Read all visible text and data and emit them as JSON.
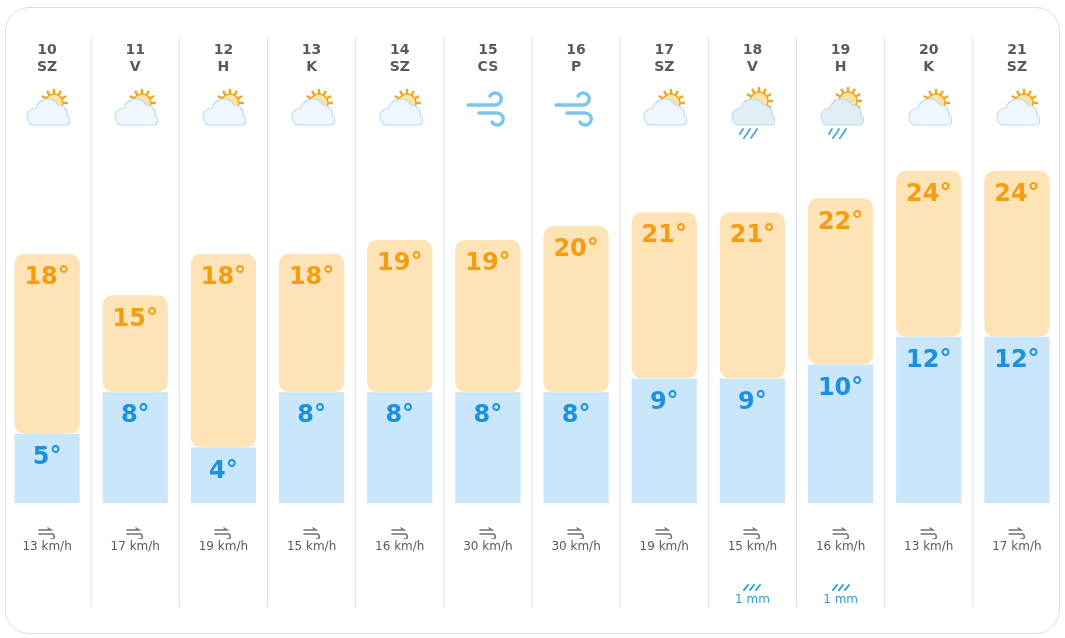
{
  "chart_data": {
    "type": "bar",
    "categories": [
      "10\nSZ",
      "11\nV",
      "12\nH",
      "13\nK",
      "14\nSZ",
      "15\nCS",
      "16\nP",
      "17\nSZ",
      "18\nV",
      "19\nH",
      "20\nK",
      "21\nSZ"
    ],
    "series": [
      {
        "color": "#c9e6fb",
        "values": [
          5,
          8,
          4,
          8,
          8,
          8,
          8,
          9,
          9,
          10,
          12,
          12
        ],
        "value_labels": [
          "5°",
          "8°",
          "4°",
          "8°",
          "8°",
          "8°",
          "8°",
          "9°",
          "9°",
          "10°",
          "12°",
          "12°"
        ]
      },
      {
        "color": "#fde3b6",
        "values": [
          13,
          7,
          14,
          10,
          11,
          11,
          12,
          12,
          12,
          12,
          12,
          12
        ]
      }
    ],
    "stacked": true,
    "totals": [
      "18°",
      "15°",
      "18°",
      "18°",
      "19°",
      "19°",
      "20°",
      "21°",
      "21°",
      "22°",
      "24°",
      "24°"
    ],
    "grid": "x",
    "annotations": [
      "13 km/h",
      "17 km/h",
      "19 km/h",
      "15 km/h",
      "16 km/h",
      "30 km/h",
      "30 km/h",
      "19 km/h",
      "15 km/h",
      "16 km/h",
      "13 km/h",
      "17 km/h",
      "1 mm",
      "1 mm"
    ]
  }
}
